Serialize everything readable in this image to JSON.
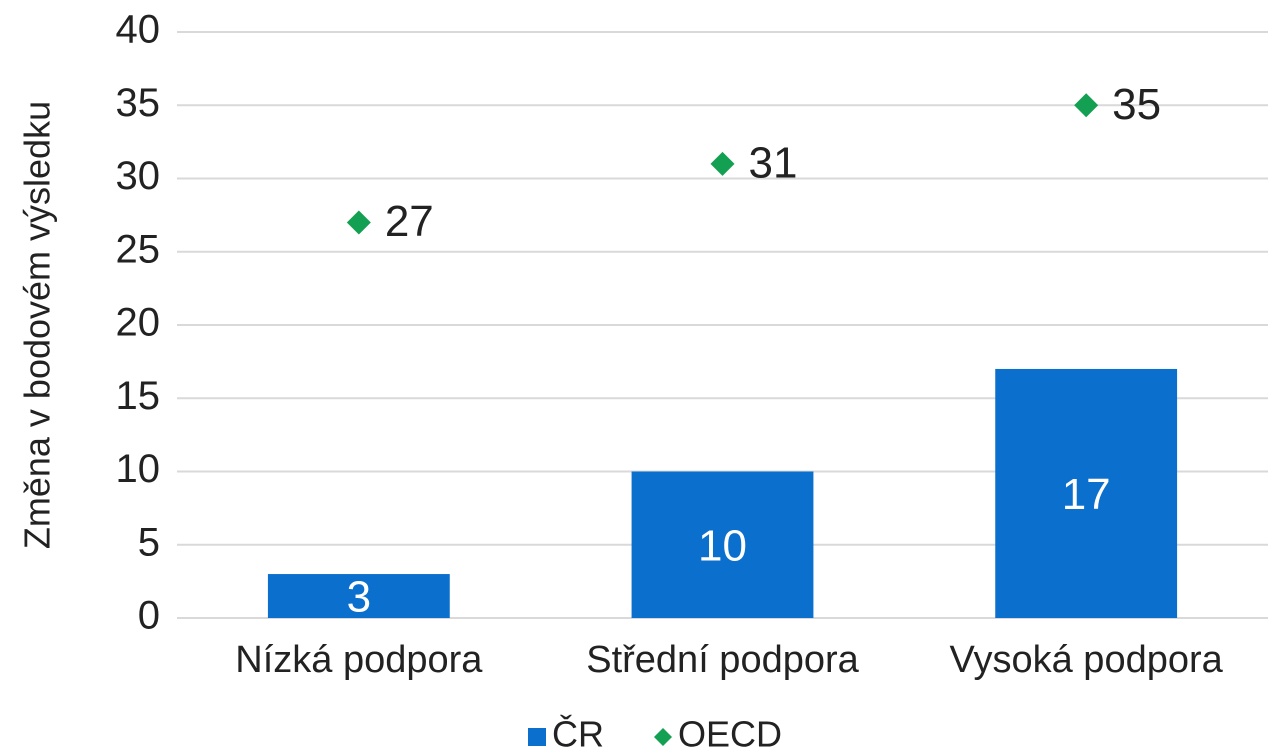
{
  "chart_data": {
    "type": "bar",
    "y_axis_label": "Změna v bodovém výsledku",
    "categories": [
      "Nízká podpora",
      "Střední podpora",
      "Vysoká podpora"
    ],
    "series": [
      {
        "name": "ČR",
        "type": "bar",
        "color": "#0b6fce",
        "values": [
          3,
          10,
          17
        ]
      },
      {
        "name": "OECD",
        "type": "marker",
        "color": "#13a052",
        "values": [
          27,
          31,
          35
        ]
      }
    ],
    "ylim": [
      0,
      40
    ],
    "yticks": [
      0,
      5,
      10,
      15,
      20,
      25,
      30,
      35,
      40
    ],
    "grid": true,
    "legend": "bottom"
  }
}
